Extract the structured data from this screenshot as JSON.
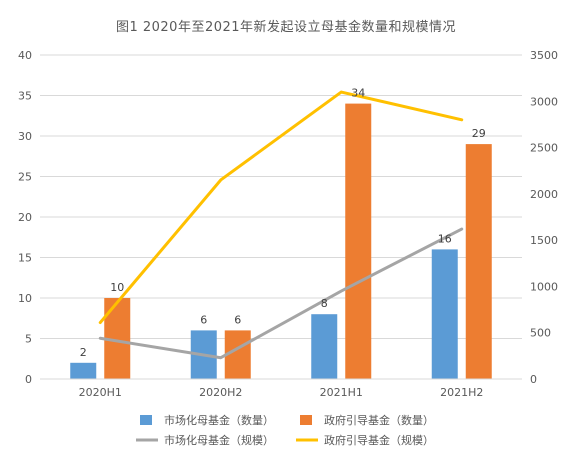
{
  "chart_data": {
    "type": "bar",
    "title": "图1 2020年至2021年新发起设立母基金数量和规模情况",
    "categories": [
      "2020H1",
      "2020H2",
      "2021H1",
      "2021H2"
    ],
    "y_left": {
      "min": 0,
      "max": 40,
      "ticks": [
        0,
        5,
        10,
        15,
        20,
        25,
        30,
        35,
        40
      ]
    },
    "y_right": {
      "min": 0,
      "max": 3500,
      "ticks": [
        0,
        500,
        1000,
        1500,
        2000,
        2500,
        3000,
        3500
      ]
    },
    "bar_series": [
      {
        "name": "市场化母基金（数量）",
        "color": "#5B9BD5",
        "axis": "left",
        "values": [
          2,
          6,
          8,
          16
        ]
      },
      {
        "name": "政府引导基金（数量）",
        "color": "#ED7D31",
        "axis": "left",
        "values": [
          10,
          6,
          34,
          29
        ]
      }
    ],
    "line_series": [
      {
        "name": "市场化母基金（规模）",
        "color": "#A5A5A5",
        "axis": "right",
        "values": [
          440,
          230,
          950,
          1620
        ]
      },
      {
        "name": "政府引导基金（规模）",
        "color": "#FFC000",
        "axis": "right",
        "values": [
          610,
          2150,
          3100,
          2800
        ]
      }
    ],
    "grid": true,
    "legend_position": "bottom"
  }
}
